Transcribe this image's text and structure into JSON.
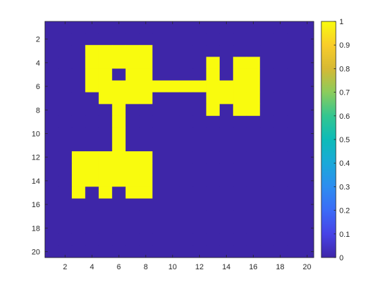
{
  "chart_data": {
    "type": "heatmap",
    "title": "",
    "xlabel": "",
    "ylabel": "",
    "xlim": [
      0.5,
      20.5
    ],
    "ylim": [
      0.5,
      20.5
    ],
    "y_reversed": true,
    "x_ticks": [
      2,
      4,
      6,
      8,
      10,
      12,
      14,
      16,
      18,
      20
    ],
    "y_ticks": [
      2,
      4,
      6,
      8,
      10,
      12,
      14,
      16,
      18,
      20
    ],
    "grid": false,
    "colormap": "parula",
    "clim": [
      0,
      1
    ],
    "colorbar_ticks": [
      "0",
      "0.1",
      "0.2",
      "0.3",
      "0.4",
      "0.5",
      "0.6",
      "0.7",
      "0.8",
      "0.9",
      "1"
    ],
    "colors": {
      "low": "#3e26a8",
      "high": "#f9fb0e"
    },
    "matrix": [
      [
        0,
        0,
        0,
        0,
        0,
        0,
        0,
        0,
        0,
        0,
        0,
        0,
        0,
        0,
        0,
        0,
        0,
        0,
        0,
        0
      ],
      [
        0,
        0,
        0,
        0,
        0,
        0,
        0,
        0,
        0,
        0,
        0,
        0,
        0,
        0,
        0,
        0,
        0,
        0,
        0,
        0
      ],
      [
        0,
        0,
        0,
        1,
        1,
        1,
        1,
        1,
        0,
        0,
        0,
        0,
        0,
        0,
        0,
        0,
        0,
        0,
        0,
        0
      ],
      [
        0,
        0,
        0,
        1,
        1,
        1,
        1,
        1,
        0,
        0,
        0,
        0,
        1,
        0,
        1,
        1,
        0,
        0,
        0,
        0
      ],
      [
        0,
        0,
        0,
        1,
        1,
        0,
        1,
        1,
        0,
        0,
        0,
        0,
        1,
        0,
        1,
        1,
        0,
        0,
        0,
        0
      ],
      [
        0,
        0,
        0,
        1,
        1,
        1,
        1,
        1,
        1,
        1,
        1,
        1,
        1,
        1,
        1,
        1,
        0,
        0,
        0,
        0
      ],
      [
        0,
        0,
        0,
        0,
        1,
        1,
        1,
        1,
        0,
        0,
        0,
        0,
        1,
        1,
        1,
        1,
        0,
        0,
        0,
        0
      ],
      [
        0,
        0,
        0,
        0,
        0,
        1,
        0,
        0,
        0,
        0,
        0,
        0,
        1,
        0,
        1,
        1,
        0,
        0,
        0,
        0
      ],
      [
        0,
        0,
        0,
        0,
        0,
        1,
        0,
        0,
        0,
        0,
        0,
        0,
        0,
        0,
        0,
        0,
        0,
        0,
        0,
        0
      ],
      [
        0,
        0,
        0,
        0,
        0,
        1,
        0,
        0,
        0,
        0,
        0,
        0,
        0,
        0,
        0,
        0,
        0,
        0,
        0,
        0
      ],
      [
        0,
        0,
        0,
        0,
        0,
        1,
        0,
        0,
        0,
        0,
        0,
        0,
        0,
        0,
        0,
        0,
        0,
        0,
        0,
        0
      ],
      [
        0,
        0,
        1,
        1,
        1,
        1,
        1,
        1,
        0,
        0,
        0,
        0,
        0,
        0,
        0,
        0,
        0,
        0,
        0,
        0
      ],
      [
        0,
        0,
        1,
        1,
        1,
        1,
        1,
        1,
        0,
        0,
        0,
        0,
        0,
        0,
        0,
        0,
        0,
        0,
        0,
        0
      ],
      [
        0,
        0,
        1,
        1,
        1,
        1,
        1,
        1,
        0,
        0,
        0,
        0,
        0,
        0,
        0,
        0,
        0,
        0,
        0,
        0
      ],
      [
        0,
        0,
        1,
        0,
        1,
        0,
        1,
        1,
        0,
        0,
        0,
        0,
        0,
        0,
        0,
        0,
        0,
        0,
        0,
        0
      ],
      [
        0,
        0,
        0,
        0,
        0,
        0,
        0,
        0,
        0,
        0,
        0,
        0,
        0,
        0,
        0,
        0,
        0,
        0,
        0,
        0
      ],
      [
        0,
        0,
        0,
        0,
        0,
        0,
        0,
        0,
        0,
        0,
        0,
        0,
        0,
        0,
        0,
        0,
        0,
        0,
        0,
        0
      ],
      [
        0,
        0,
        0,
        0,
        0,
        0,
        0,
        0,
        0,
        0,
        0,
        0,
        0,
        0,
        0,
        0,
        0,
        0,
        0,
        0
      ],
      [
        0,
        0,
        0,
        0,
        0,
        0,
        0,
        0,
        0,
        0,
        0,
        0,
        0,
        0,
        0,
        0,
        0,
        0,
        0,
        0
      ],
      [
        0,
        0,
        0,
        0,
        0,
        0,
        0,
        0,
        0,
        0,
        0,
        0,
        0,
        0,
        0,
        0,
        0,
        0,
        0,
        0
      ]
    ]
  }
}
